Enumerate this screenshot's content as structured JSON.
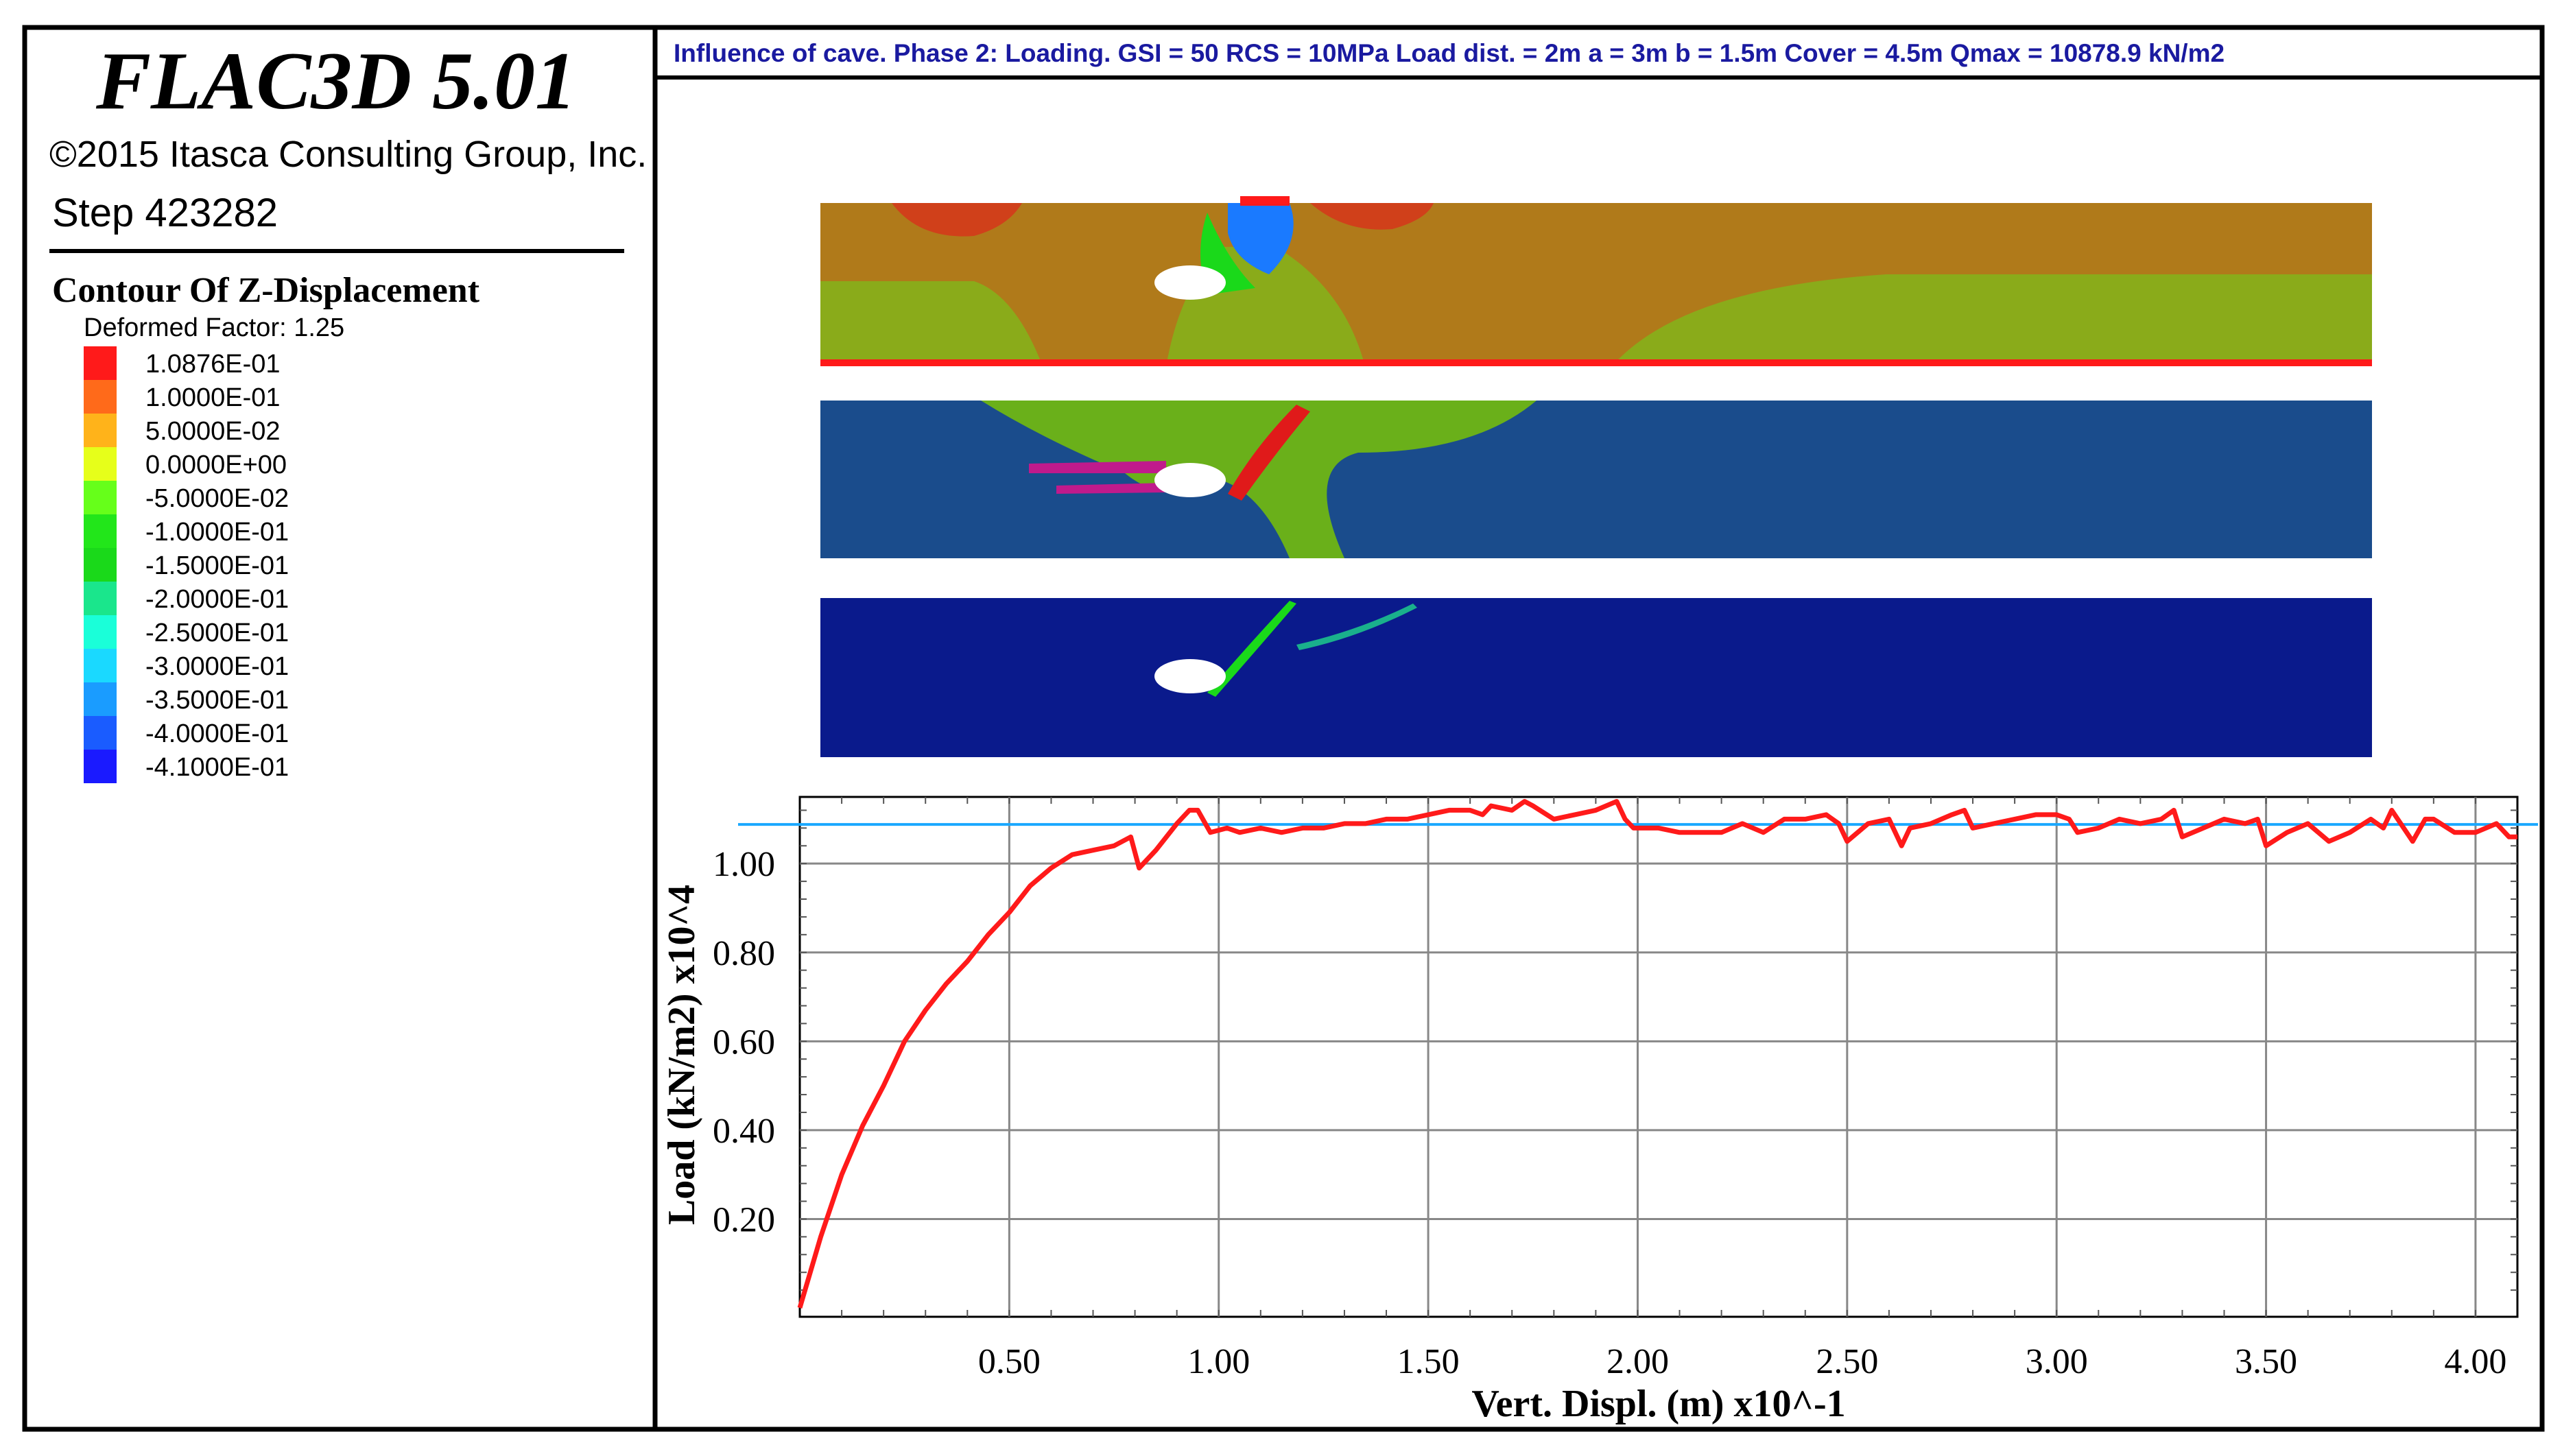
{
  "sidebar": {
    "software": "FLAC3D 5.01",
    "copyright": "©2015 Itasca Consulting Group, Inc.",
    "step": "Step 423282",
    "contour_title": "Contour Of Z-Displacement",
    "deformed_factor": "Deformed Factor: 1.25",
    "legend": [
      {
        "label": "1.0876E-01",
        "color": "#ff1a1a"
      },
      {
        "label": "1.0000E-01",
        "color": "#ff6a1a"
      },
      {
        "label": "5.0000E-02",
        "color": "#ffb31a"
      },
      {
        "label": "0.0000E+00",
        "color": "#e6ff1a"
      },
      {
        "label": "-5.0000E-02",
        "color": "#66ff1a"
      },
      {
        "label": "-1.0000E-01",
        "color": "#22e61a"
      },
      {
        "label": "-1.5000E-01",
        "color": "#1ad91a"
      },
      {
        "label": "-2.0000E-01",
        "color": "#1ae68c"
      },
      {
        "label": "-2.5000E-01",
        "color": "#1affd9"
      },
      {
        "label": "-3.0000E-01",
        "color": "#1ad9ff"
      },
      {
        "label": "-3.5000E-01",
        "color": "#1a9cff"
      },
      {
        "label": "-4.0000E-01",
        "color": "#1a5cff"
      },
      {
        "label": "-4.1000E-01",
        "color": "#1a1aff"
      }
    ]
  },
  "header": {
    "title": "Influence of cave. Phase 2: Loading. GSI = 50 RCS = 10MPa Load dist. = 2m a = 3m b = 1.5m Cover = 4.5m Qmax = 10878.9 kN/m2"
  },
  "colors": {
    "frame": "#000000",
    "title_text": "#1a1aa0",
    "curve": "#ff1a1a",
    "reference_line": "#1aa8ff",
    "grid": "#888888",
    "panel_top": "#b07a1a",
    "panel_mid": "#1a4c8c",
    "panel_bottom": "#0a1a8c"
  },
  "chart_data": {
    "type": "line",
    "xlabel": "Vert. Displ. (m) x10^-1",
    "ylabel": "Load (kN/m2) x10^4",
    "xlim": [
      0,
      4.1
    ],
    "ylim": [
      -0.02,
      1.15
    ],
    "x_ticks": [
      "0.50",
      "1.00",
      "1.50",
      "2.00",
      "2.50",
      "3.00",
      "3.50",
      "4.00"
    ],
    "x_tick_values": [
      0.5,
      1.0,
      1.5,
      2.0,
      2.5,
      3.0,
      3.5,
      4.0
    ],
    "y_ticks": [
      "0.20",
      "0.40",
      "0.60",
      "0.80",
      "1.00"
    ],
    "y_tick_values": [
      0.2,
      0.4,
      0.6,
      0.8,
      1.0
    ],
    "grid": true,
    "reference_line": {
      "y": 1.088
    },
    "series": [
      {
        "color": "#ff1a1a",
        "x": [
          0.0,
          0.05,
          0.1,
          0.15,
          0.2,
          0.25,
          0.3,
          0.35,
          0.4,
          0.45,
          0.5,
          0.55,
          0.6,
          0.65,
          0.7,
          0.75,
          0.79,
          0.81,
          0.85,
          0.9,
          0.93,
          0.95,
          0.98,
          1.02,
          1.05,
          1.1,
          1.15,
          1.2,
          1.25,
          1.3,
          1.35,
          1.4,
          1.45,
          1.5,
          1.55,
          1.6,
          1.63,
          1.65,
          1.7,
          1.73,
          1.75,
          1.8,
          1.85,
          1.9,
          1.95,
          1.97,
          1.99,
          2.05,
          2.1,
          2.2,
          2.25,
          2.3,
          2.35,
          2.4,
          2.45,
          2.48,
          2.5,
          2.55,
          2.6,
          2.63,
          2.65,
          2.7,
          2.75,
          2.78,
          2.8,
          2.85,
          2.9,
          2.95,
          3.0,
          3.03,
          3.05,
          3.1,
          3.15,
          3.2,
          3.25,
          3.28,
          3.3,
          3.35,
          3.4,
          3.45,
          3.48,
          3.5,
          3.55,
          3.6,
          3.65,
          3.7,
          3.75,
          3.78,
          3.8,
          3.85,
          3.88,
          3.9,
          3.95,
          4.0,
          4.05,
          4.08,
          4.1
        ],
        "y": [
          0.0,
          0.16,
          0.3,
          0.41,
          0.5,
          0.6,
          0.67,
          0.73,
          0.78,
          0.84,
          0.89,
          0.95,
          0.99,
          1.02,
          1.03,
          1.04,
          1.06,
          0.99,
          1.03,
          1.09,
          1.12,
          1.12,
          1.07,
          1.08,
          1.07,
          1.08,
          1.07,
          1.08,
          1.08,
          1.09,
          1.09,
          1.1,
          1.1,
          1.11,
          1.12,
          1.12,
          1.11,
          1.13,
          1.12,
          1.14,
          1.13,
          1.1,
          1.11,
          1.12,
          1.14,
          1.1,
          1.08,
          1.08,
          1.07,
          1.07,
          1.09,
          1.07,
          1.1,
          1.1,
          1.11,
          1.09,
          1.05,
          1.09,
          1.1,
          1.04,
          1.08,
          1.09,
          1.11,
          1.12,
          1.08,
          1.09,
          1.1,
          1.11,
          1.11,
          1.1,
          1.07,
          1.08,
          1.1,
          1.09,
          1.1,
          1.12,
          1.06,
          1.08,
          1.1,
          1.09,
          1.1,
          1.04,
          1.07,
          1.09,
          1.05,
          1.07,
          1.1,
          1.08,
          1.12,
          1.05,
          1.1,
          1.1,
          1.07,
          1.07,
          1.09,
          1.06,
          1.06
        ]
      }
    ]
  }
}
